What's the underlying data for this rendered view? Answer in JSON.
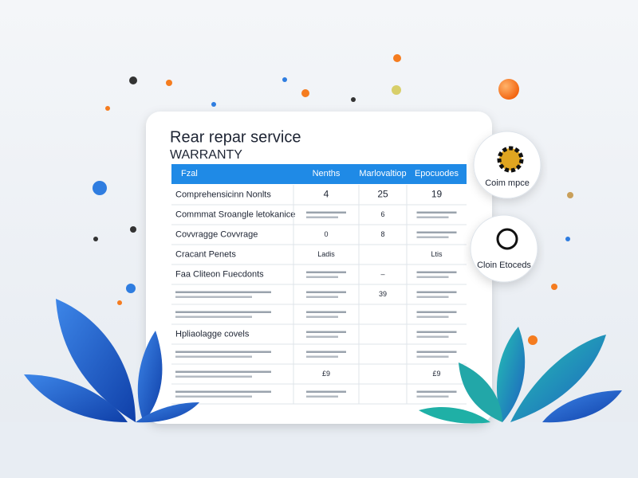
{
  "header": {
    "title": "Rear repar service",
    "subtitle": "WARRANTY"
  },
  "table": {
    "columns": [
      "Fzal",
      "Nenths",
      "Marlovaltiop",
      "Epocuodes"
    ],
    "rows": [
      [
        "Comprehensicinn Nonlts",
        "4",
        "25",
        "19"
      ],
      [
        "Commmat Sroangle letokanice",
        null,
        "6",
        null
      ],
      [
        "Covvragge Covvrage",
        "0",
        "8",
        null
      ],
      [
        "Cracant Penets",
        "Ladis",
        null,
        "Ltis"
      ],
      [
        "Faa Cliteon Fuecdonts",
        null,
        "–",
        null
      ],
      [
        null,
        null,
        "39",
        null
      ],
      [
        null,
        null,
        null,
        null
      ],
      [
        "Hpliaolagge covels",
        null,
        null,
        null
      ],
      [
        null,
        null,
        null,
        null
      ],
      [
        null,
        "£9",
        null,
        "£9"
      ],
      [
        null,
        null,
        null,
        null
      ]
    ]
  },
  "badges": [
    {
      "label": "Coim mpce"
    },
    {
      "label": "Cloin Etoceds"
    }
  ]
}
